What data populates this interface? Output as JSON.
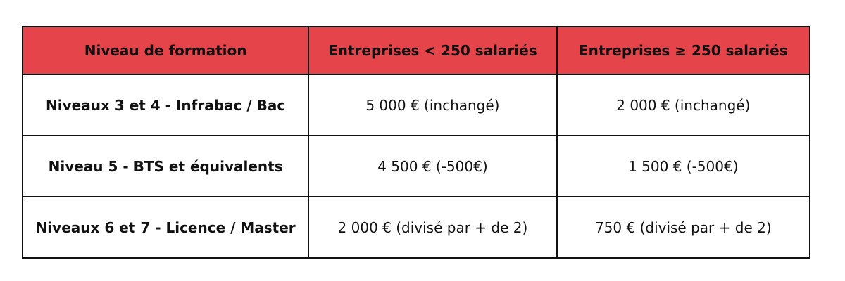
{
  "table": {
    "header_color": "#e5444b",
    "headers": [
      "Niveau de formation",
      "Entreprises < 250 salariés",
      "Entreprises ≥ 250 salariés"
    ],
    "rows": [
      [
        "Niveaux 3 et 4 - Infrabac / Bac",
        "5 000 € (inchangé)",
        "2 000 € (inchangé)"
      ],
      [
        "Niveau 5 - BTS et équivalents",
        "4 500 € (-500€)",
        "1 500 € (-500€)"
      ],
      [
        "Niveaux 6 et 7 - Licence / Master",
        "2 000 € (divisé par + de 2)",
        "750 € (divisé par + de 2)"
      ]
    ]
  }
}
